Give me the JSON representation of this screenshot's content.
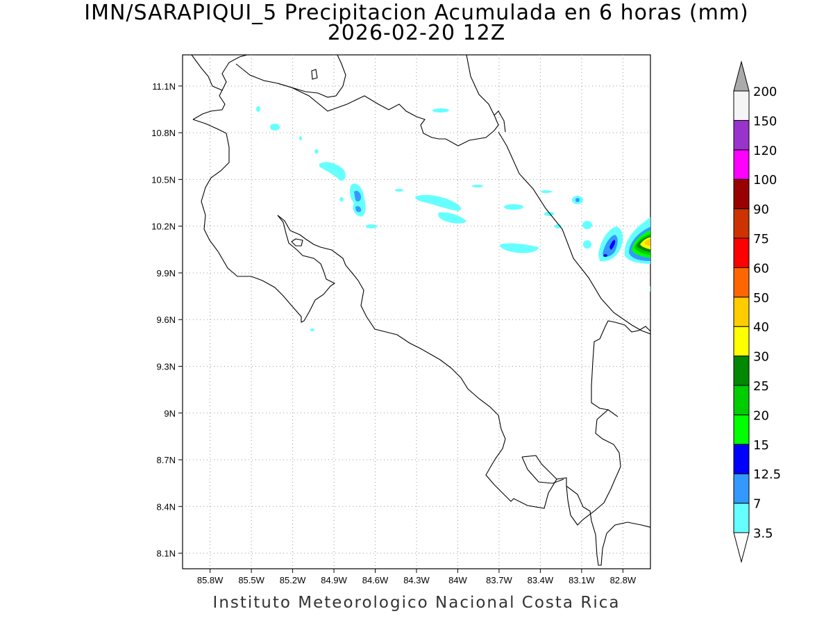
{
  "title": {
    "line1": "IMN/SARAPIQUI_5 Precipitacion Acumulada en 6 horas (mm)",
    "line2": "2026-02-20 12Z"
  },
  "credit": "Instituto Meteorologico Nacional Costa Rica",
  "map": {
    "region": "Costa Rica",
    "lon_range": [
      -86.0,
      -82.6
    ],
    "lat_range": [
      8.0,
      11.3
    ],
    "grid": true,
    "lat_ticks": [
      "11.1N",
      "10.8N",
      "10.5N",
      "10.2N",
      "9.9N",
      "9.6N",
      "9.3N",
      "9N",
      "8.7N",
      "8.4N",
      "8.1N"
    ],
    "lon_ticks": [
      "85.8W",
      "85.5W",
      "85.2W",
      "84.9W",
      "84.6W",
      "84.3W",
      "84W",
      "83.7W",
      "83.4W",
      "83.1W",
      "82.8W"
    ]
  },
  "colorbar": {
    "labels": [
      "3.5",
      "7",
      "12.5",
      "15",
      "20",
      "25",
      "30",
      "40",
      "50",
      "60",
      "75",
      "90",
      "100",
      "120",
      "150",
      "200"
    ],
    "colors": [
      "#66ffff",
      "#3399ff",
      "#0000ff",
      "#00ff00",
      "#00cc00",
      "#008800",
      "#ffff00",
      "#ffcc00",
      "#ff6600",
      "#ff0000",
      "#cc3300",
      "#990000",
      "#ff00ff",
      "#9933cc",
      "#f5f5f5"
    ],
    "under_color": "#ffffff",
    "over_color": "#aaaaaa"
  }
}
